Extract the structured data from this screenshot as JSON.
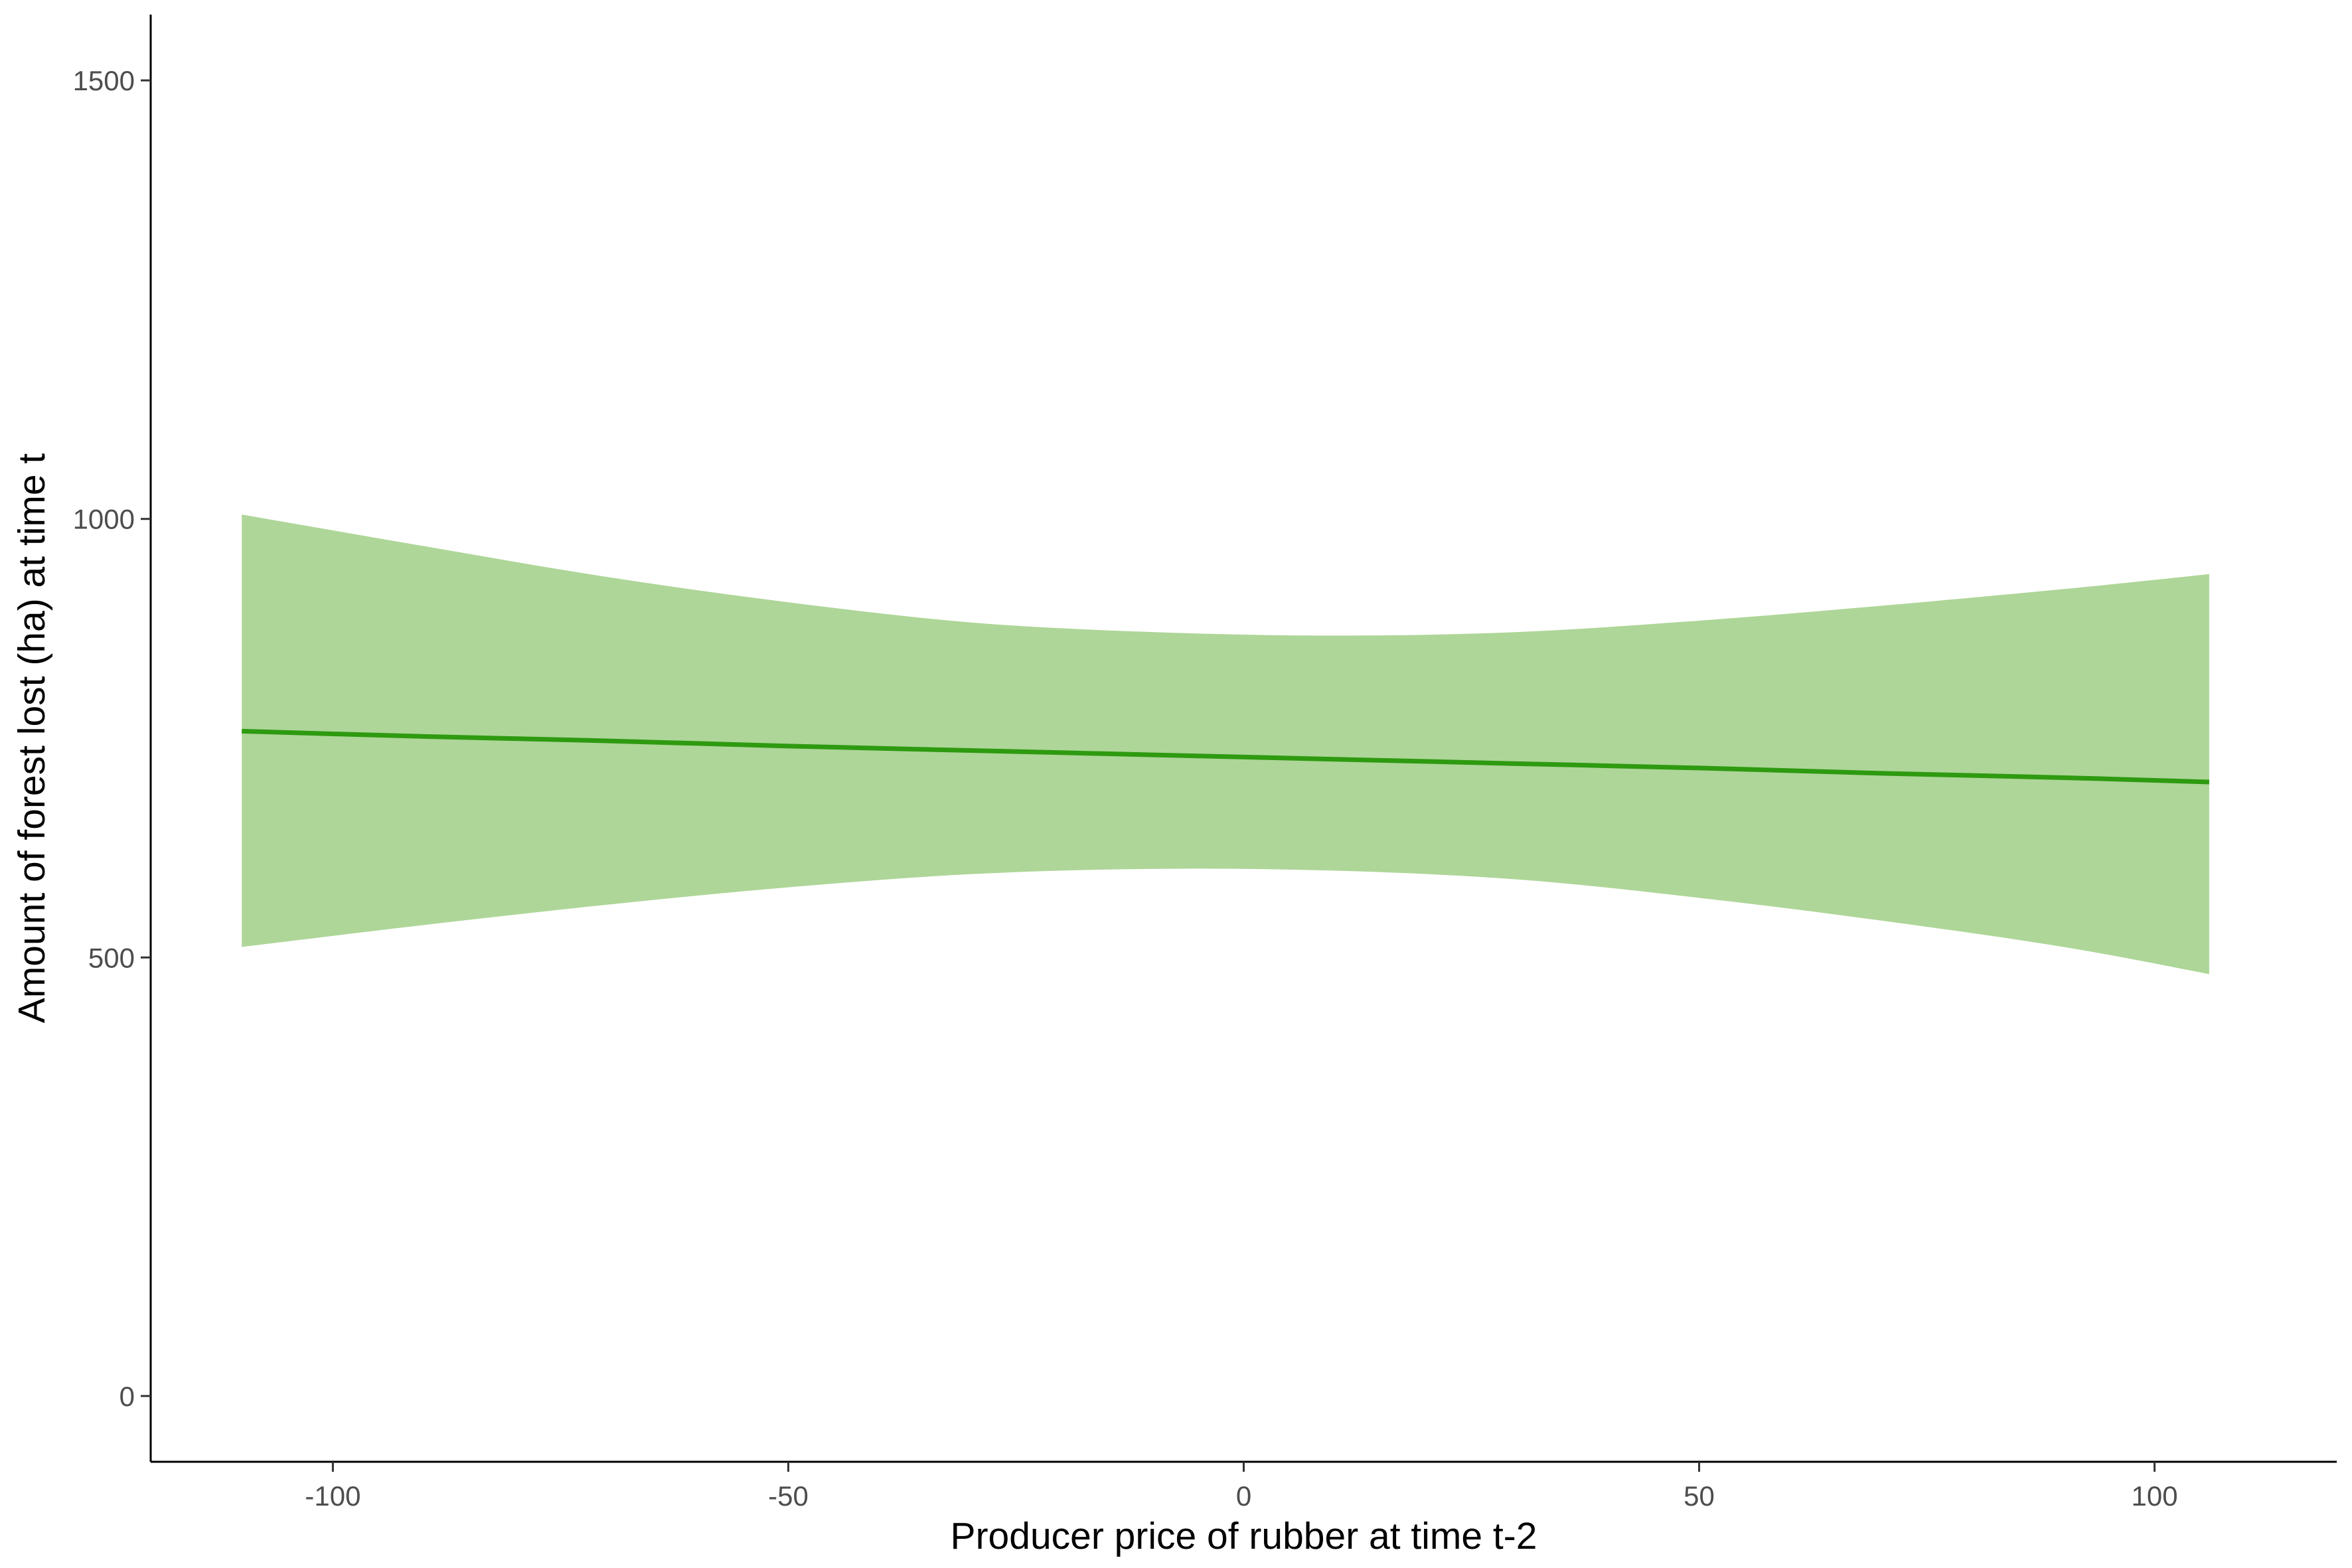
{
  "chart_data": {
    "type": "line",
    "title": "",
    "xlabel": "Producer price of rubber at time t-2",
    "ylabel": "Amount of forest lost (ha) at time t",
    "xlim": [
      -120,
      120
    ],
    "ylim": [
      -75,
      1575
    ],
    "x_ticks": [
      -100,
      -50,
      0,
      50,
      100
    ],
    "y_ticks": [
      0,
      500,
      1000,
      1500
    ],
    "x_tick_labels": [
      "-100",
      "-50",
      "0",
      "50",
      "100"
    ],
    "y_tick_labels": [
      "0",
      "500",
      "1000",
      "1500"
    ],
    "grid": false,
    "legend": "none",
    "series": [
      {
        "x": [
          -110,
          -90,
          -70,
          -50,
          -30,
          -10,
          10,
          30,
          50,
          70,
          90,
          106
        ],
        "y": [
          758,
          752,
          747,
          741,
          736,
          731,
          726,
          721,
          716,
          710,
          705,
          700
        ],
        "lower": [
          512,
          537,
          560,
          580,
          595,
          601,
          599,
          589,
          568,
          542,
          512,
          481
        ],
        "upper": [
          1005,
          969,
          934,
          905,
          882,
          871,
          867,
          871,
          884,
          901,
          920,
          937
        ],
        "color": "#2e9a10",
        "band_color": "#aed698"
      }
    ]
  }
}
